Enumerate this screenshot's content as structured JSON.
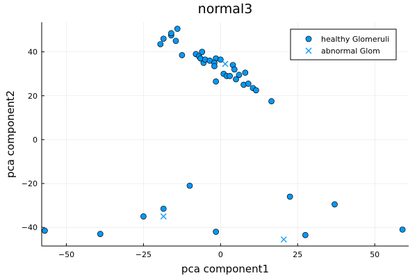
{
  "chart_data": {
    "type": "scatter",
    "title": "normal3",
    "xlabel": "pca component1",
    "ylabel": "pca component2",
    "xlim": [
      -58,
      61
    ],
    "ylim": [
      -48.5,
      53.5
    ],
    "xticks": [
      -50,
      -25,
      0,
      25,
      50
    ],
    "yticks": [
      -40,
      -20,
      0,
      20,
      40
    ],
    "grid": true,
    "legend_position": "top-right",
    "series": [
      {
        "name": "healthy Glomeruli",
        "marker": "circle",
        "color": "#009af9",
        "points": [
          [
            -14,
            50.5
          ],
          [
            -18.5,
            46
          ],
          [
            -19.5,
            43.5
          ],
          [
            -16,
            47.5
          ],
          [
            -16,
            48.5
          ],
          [
            -14.5,
            45
          ],
          [
            -12.5,
            38.5
          ],
          [
            -8,
            39
          ],
          [
            -7,
            38
          ],
          [
            -6,
            40
          ],
          [
            -6.5,
            37
          ],
          [
            -5.5,
            35
          ],
          [
            -5,
            36.5
          ],
          [
            -3.5,
            36
          ],
          [
            -1.5,
            37
          ],
          [
            0,
            36.5
          ],
          [
            -2,
            35
          ],
          [
            -2,
            33.5
          ],
          [
            1,
            30
          ],
          [
            2,
            29
          ],
          [
            3,
            29
          ],
          [
            4,
            34
          ],
          [
            4.5,
            32
          ],
          [
            5,
            27.5
          ],
          [
            6,
            29.5
          ],
          [
            7.5,
            25
          ],
          [
            8,
            30.5
          ],
          [
            9,
            25.5
          ],
          [
            10.5,
            23.5
          ],
          [
            11.5,
            22.5
          ],
          [
            16.5,
            17.5
          ],
          [
            -1.5,
            26.5
          ],
          [
            -10,
            -21
          ],
          [
            -18.5,
            -31.5
          ],
          [
            -25,
            -35
          ],
          [
            -39,
            -43
          ],
          [
            -57,
            -41.5
          ],
          [
            -1.5,
            -42
          ],
          [
            22.5,
            -26
          ],
          [
            27.5,
            -43.5
          ],
          [
            37,
            -29.5
          ],
          [
            59,
            -41
          ]
        ]
      },
      {
        "name": "abnormal Glom",
        "marker": "x",
        "color": "#009af9",
        "points": [
          [
            1.5,
            34.5
          ],
          [
            -18.5,
            -35
          ],
          [
            20.5,
            -45.5
          ]
        ]
      }
    ]
  }
}
